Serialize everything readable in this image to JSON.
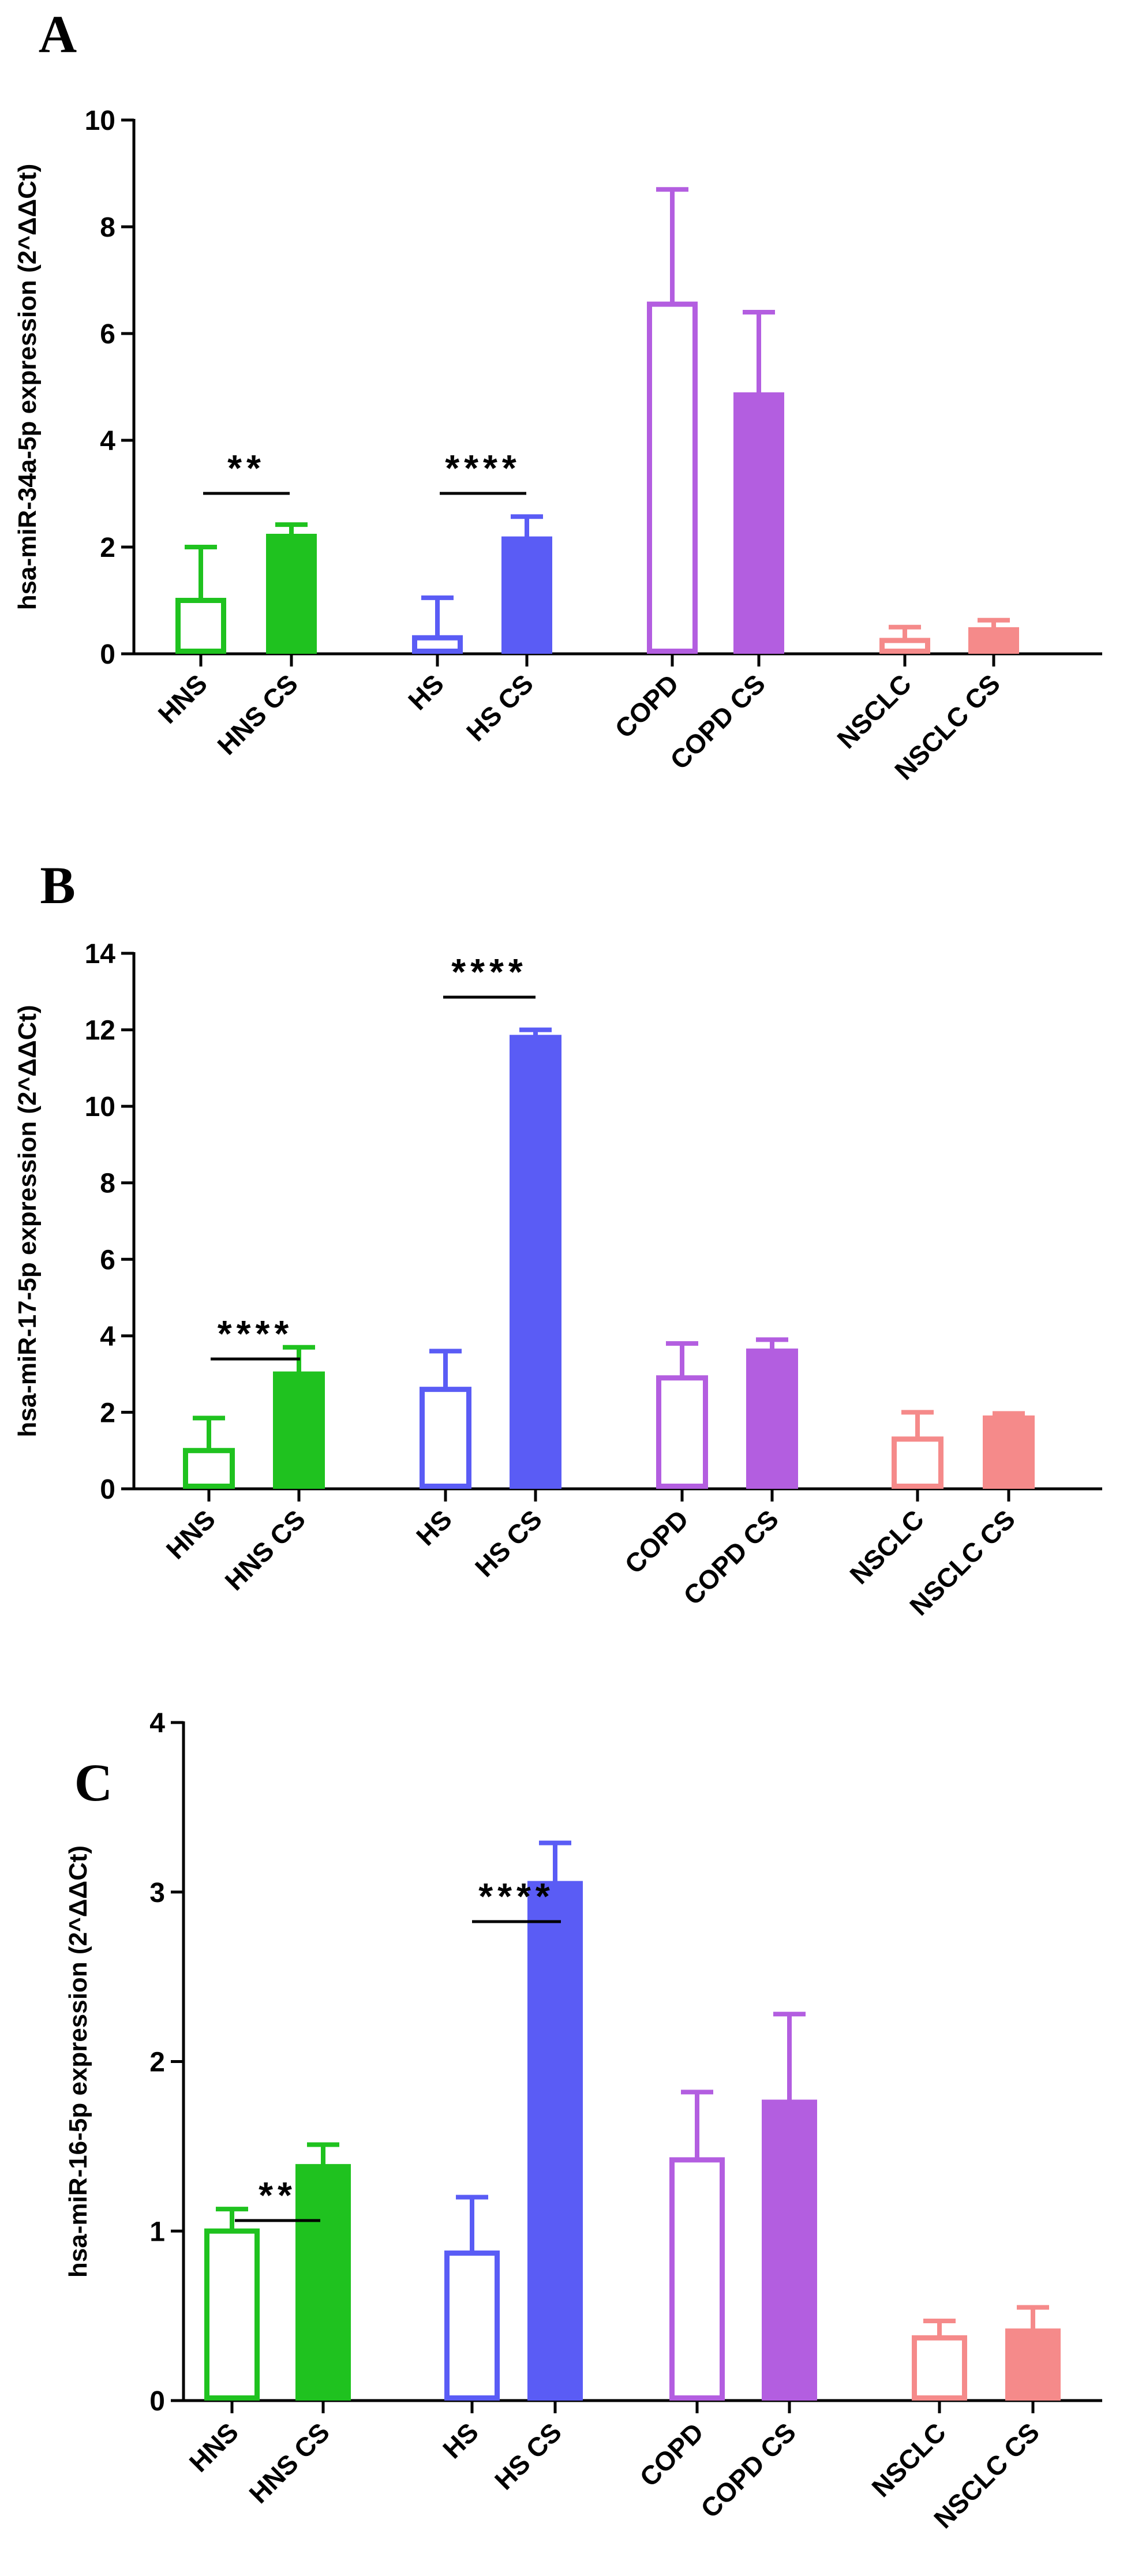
{
  "chart_data": [
    {
      "type": "bar",
      "panel": "A",
      "title": "",
      "xlabel": "",
      "ylabel": "hsa-miR-34a-5p expression (2^ΔΔCt)",
      "ylim": [
        0,
        10
      ],
      "yticks": [
        "0",
        "2",
        "4",
        "6",
        "8",
        "10"
      ],
      "categories": [
        "HNS",
        "HNS CS",
        "HS",
        "HS CS",
        "COPD",
        "COPD CS",
        "NSCLC",
        "NSCLC CS"
      ],
      "values": [
        1.0,
        2.2,
        0.3,
        2.15,
        6.55,
        4.85,
        0.25,
        0.45
      ],
      "errors": [
        1.0,
        0.22,
        0.75,
        0.42,
        2.15,
        1.55,
        0.25,
        0.18
      ],
      "fill": [
        "open",
        "solid",
        "open",
        "solid",
        "open",
        "solid",
        "open",
        "solid"
      ],
      "significance": [
        {
          "label": "**",
          "pair": [
            "HNS",
            "HNS CS"
          ]
        },
        {
          "label": "****",
          "pair": [
            "HS",
            "HS CS"
          ]
        }
      ]
    },
    {
      "type": "bar",
      "panel": "B",
      "title": "",
      "xlabel": "",
      "ylabel": "hsa-miR-17-5p expression (2^ΔΔCt)",
      "ylim": [
        0,
        14
      ],
      "yticks": [
        "0",
        "2",
        "4",
        "6",
        "8",
        "10",
        "12",
        "14"
      ],
      "categories": [
        "HNS",
        "HNS CS",
        "HS",
        "HS CS",
        "COPD",
        "COPD CS",
        "NSCLC",
        "NSCLC CS"
      ],
      "values": [
        1.0,
        3.0,
        2.6,
        11.8,
        2.9,
        3.6,
        1.3,
        1.85
      ],
      "errors": [
        0.85,
        0.7,
        1.0,
        0.2,
        0.9,
        0.3,
        0.7,
        0.12
      ],
      "fill": [
        "open",
        "solid",
        "open",
        "solid",
        "open",
        "solid",
        "open",
        "solid"
      ],
      "significance": [
        {
          "label": "****",
          "pair": [
            "HNS",
            "HNS CS"
          ]
        },
        {
          "label": "****",
          "pair": [
            "HS",
            "HS CS"
          ]
        }
      ]
    },
    {
      "type": "bar",
      "panel": "C",
      "title": "",
      "xlabel": "",
      "ylabel": "hsa-miR-16-5p expression (2^ΔΔCt)",
      "ylim": [
        0,
        4
      ],
      "yticks": [
        "0",
        "1",
        "2",
        "3",
        "4"
      ],
      "categories": [
        "HNS",
        "HNS CS",
        "HS",
        "HS CS",
        "COPD",
        "COPD CS",
        "NSCLC",
        "NSCLC CS"
      ],
      "values": [
        1.0,
        1.38,
        0.87,
        3.05,
        1.42,
        1.76,
        0.37,
        0.41
      ],
      "errors": [
        0.13,
        0.13,
        0.33,
        0.24,
        0.4,
        0.52,
        0.1,
        0.14
      ],
      "fill": [
        "open",
        "solid",
        "open",
        "solid",
        "open",
        "solid",
        "open",
        "solid"
      ],
      "significance": [
        {
          "label": "**",
          "pair": [
            "HNS",
            "HNS CS"
          ]
        },
        {
          "label": "****",
          "pair": [
            "HS",
            "HS CS"
          ]
        }
      ]
    }
  ],
  "colors": {
    "group_colors": [
      "#1fc21f",
      "#1fc21f",
      "#5a5cf5",
      "#5a5cf5",
      "#b35ee0",
      "#b35ee0",
      "#f58a8a",
      "#f58a8a"
    ],
    "axis": "#000000"
  }
}
